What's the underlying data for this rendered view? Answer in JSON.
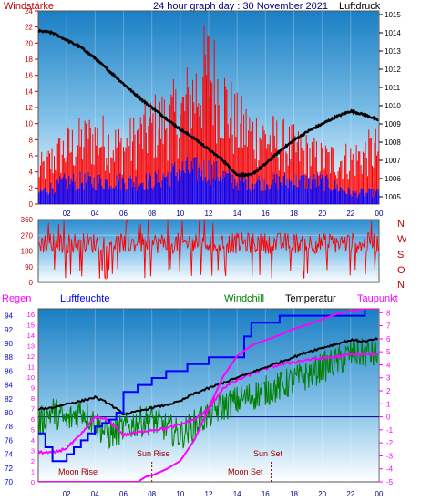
{
  "header": {
    "left_label": "Windstärke",
    "title": "24 hour graph day : 30 November 2021",
    "right_label": "Luftdruck"
  },
  "colors": {
    "wind_gust": "#ff0000",
    "wind_avg": "#0000ff",
    "pressure": "#000000",
    "direction": "#ff0000",
    "rain": "#ff00ff",
    "humidity": "#0000ff",
    "windchill": "#008000",
    "temperature": "#000000",
    "dewpoint": "#ff00ff",
    "axis_left": "#c00000",
    "axis_blue": "#000080"
  },
  "chart_data": [
    {
      "type": "line",
      "name": "wind-pressure",
      "left_label": "Windstärke",
      "right_label": "Luftdruck",
      "x_ticks": [
        "02",
        "04",
        "06",
        "08",
        "10",
        "12",
        "14",
        "16",
        "18",
        "20",
        "22",
        "00"
      ],
      "y_left_ticks": [
        "0",
        "2",
        "4",
        "6",
        "8",
        "10",
        "12",
        "14",
        "16",
        "18",
        "20",
        "22",
        "24"
      ],
      "y_left_range": [
        0,
        24
      ],
      "y_right_ticks": [
        "1005",
        "1006",
        "1007",
        "1008",
        "1009",
        "1010",
        "1011",
        "1012",
        "1013",
        "1014",
        "1015"
      ],
      "y_right_range": [
        1004.6,
        1015.2
      ],
      "pressure_series": {
        "x": [
          0,
          1,
          2,
          3,
          4,
          5,
          6,
          7,
          8,
          9,
          10,
          11,
          12,
          13,
          14,
          15,
          16,
          17,
          18,
          19,
          20,
          21,
          22,
          23,
          24
        ],
        "y": [
          1014.1,
          1014.0,
          1013.6,
          1013.2,
          1012.6,
          1011.9,
          1011.2,
          1010.5,
          1009.9,
          1009.3,
          1008.7,
          1008.2,
          1007.6,
          1007.0,
          1006.2,
          1006.2,
          1006.8,
          1007.5,
          1008.1,
          1008.6,
          1009.0,
          1009.4,
          1009.7,
          1009.5,
          1009.2
        ]
      },
      "gust_envelope": {
        "x": [
          0,
          2,
          4,
          6,
          8,
          10,
          12,
          14,
          16,
          18,
          20,
          22,
          24
        ],
        "y": [
          6,
          10,
          12,
          10,
          14,
          16,
          24,
          14,
          12,
          10,
          8,
          8,
          10
        ]
      },
      "avg_envelope": {
        "x": [
          0,
          2,
          4,
          6,
          8,
          10,
          12,
          14,
          16,
          18,
          20,
          22,
          24
        ],
        "y": [
          2,
          4,
          4,
          4,
          4,
          6,
          6,
          4,
          4,
          4,
          4,
          2,
          2
        ]
      }
    },
    {
      "type": "scatter",
      "name": "wind-direction",
      "y_ticks": [
        "0",
        "90",
        "180",
        "270",
        "360"
      ],
      "y_range": [
        0,
        360
      ],
      "compass_labels": [
        "N",
        "W",
        "S",
        "O",
        "N"
      ]
    },
    {
      "type": "line",
      "name": "climate",
      "legend": [
        "Regen",
        "Luftfeuchte",
        "Windchill",
        "Temperatur",
        "Taupunkt"
      ],
      "x_ticks": [
        "02",
        "04",
        "06",
        "08",
        "10",
        "12",
        "14",
        "16",
        "18",
        "20",
        "22",
        "00"
      ],
      "y_humidity_ticks": [
        "70",
        "72",
        "74",
        "76",
        "78",
        "80",
        "82",
        "84",
        "86",
        "88",
        "90",
        "92",
        "94"
      ],
      "y_humidity_range": [
        70,
        95
      ],
      "y_rain_ticks": [
        "0",
        "1",
        "2",
        "3",
        "4",
        "5",
        "6",
        "7",
        "8",
        "9",
        "10",
        "11",
        "12",
        "13",
        "14",
        "15",
        "16"
      ],
      "y_rain_range": [
        0,
        16.5
      ],
      "y_temp_ticks": [
        "-5",
        "-4",
        "-3",
        "-2",
        "-1",
        "0",
        "1",
        "2",
        "3",
        "4",
        "5",
        "6",
        "7",
        "8"
      ],
      "y_temp_range": [
        -5,
        8.3
      ],
      "annotations": [
        "Moon Rise",
        "Sun Rise",
        "Sun Set",
        "Moon Set"
      ],
      "humidity": {
        "x": [
          0,
          0.5,
          1,
          1.5,
          2,
          2.5,
          3,
          3.5,
          4,
          4.5,
          5,
          5.5,
          6,
          7,
          8,
          9,
          10,
          10.5,
          11,
          12,
          13,
          14,
          14.5,
          15,
          16,
          17,
          18,
          19,
          20,
          21,
          22,
          23,
          24
        ],
        "y": [
          77,
          75,
          73,
          73,
          74,
          75,
          76,
          77,
          78,
          78.5,
          79,
          80,
          83,
          84,
          85,
          86,
          86,
          87,
          87,
          88,
          88,
          88,
          91,
          93,
          93,
          94,
          94,
          94,
          94,
          94,
          94,
          95,
          95
        ]
      },
      "temperature": {
        "x": [
          0,
          1,
          2,
          3,
          4,
          5,
          6,
          7,
          8,
          9,
          10,
          11,
          12,
          13,
          14,
          15,
          16,
          17,
          18,
          19,
          20,
          21,
          22,
          23,
          24
        ],
        "y": [
          0.6,
          0.7,
          1.0,
          1.2,
          1.5,
          1.0,
          0.2,
          0.4,
          0.7,
          0.9,
          1.2,
          1.8,
          2.2,
          2.6,
          3.0,
          3.4,
          3.8,
          4.2,
          4.6,
          5.0,
          5.3,
          5.6,
          5.9,
          5.8,
          6.0
        ]
      },
      "dewpoint": {
        "x": [
          0,
          1,
          2,
          3,
          4,
          5,
          6,
          7,
          8,
          9,
          10,
          11,
          12,
          13,
          14,
          15,
          16,
          17,
          18,
          19,
          20,
          21,
          22,
          23,
          24
        ],
        "y": [
          -2.7,
          -2.8,
          -2.4,
          -1.4,
          0.0,
          -0.3,
          -1.4,
          -1.2,
          -1.0,
          -0.9,
          -0.6,
          -0.2,
          0.6,
          2.2,
          2.8,
          3.3,
          3.7,
          4.0,
          4.2,
          4.4,
          4.5,
          4.6,
          4.8,
          4.8,
          4.8
        ]
      },
      "windchill": {
        "x": [
          0,
          1,
          2,
          3,
          4,
          5,
          6,
          7,
          8,
          9,
          10,
          11,
          12,
          13,
          14,
          15,
          16,
          17,
          18,
          19,
          20,
          21,
          22,
          23,
          24
        ],
        "y": [
          -0.6,
          0.5,
          -0.4,
          0.6,
          -0.5,
          -1.4,
          -0.9,
          -0.4,
          -0.2,
          -0.8,
          -1.4,
          -0.6,
          0.2,
          0.8,
          1.2,
          1.6,
          2.0,
          2.3,
          2.8,
          3.2,
          3.8,
          4.2,
          4.8,
          4.9,
          4.8
        ]
      },
      "rain": {
        "x": [
          0,
          7,
          7.6,
          8,
          9,
          10,
          11,
          12,
          13,
          14,
          15,
          16,
          17,
          18,
          19,
          20,
          21,
          22,
          23,
          24
        ],
        "y": [
          0,
          0,
          0.5,
          0.6,
          1.2,
          2.0,
          4.0,
          7.0,
          10.0,
          12.0,
          13.0,
          13.5,
          14.0,
          14.6,
          15.0,
          15.5,
          16.0,
          16.3,
          16.5,
          16.5
        ]
      }
    }
  ]
}
